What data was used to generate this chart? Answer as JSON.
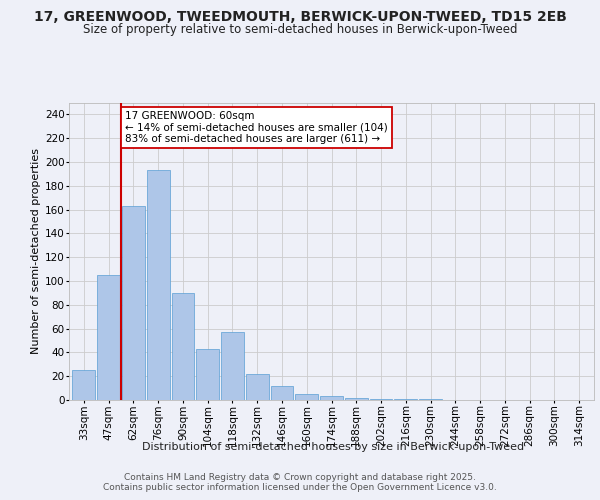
{
  "title1": "17, GREENWOOD, TWEEDMOUTH, BERWICK-UPON-TWEED, TD15 2EB",
  "title2": "Size of property relative to semi-detached houses in Berwick-upon-Tweed",
  "xlabel": "Distribution of semi-detached houses by size in Berwick-upon-Tweed",
  "ylabel": "Number of semi-detached properties",
  "categories": [
    "33sqm",
    "47sqm",
    "62sqm",
    "76sqm",
    "90sqm",
    "104sqm",
    "118sqm",
    "132sqm",
    "146sqm",
    "160sqm",
    "174sqm",
    "188sqm",
    "202sqm",
    "216sqm",
    "230sqm",
    "244sqm",
    "258sqm",
    "272sqm",
    "286sqm",
    "300sqm",
    "314sqm"
  ],
  "values": [
    25,
    105,
    163,
    193,
    90,
    43,
    57,
    22,
    12,
    5,
    3,
    2,
    1,
    1,
    1,
    0,
    0,
    0,
    0,
    0,
    0
  ],
  "bar_color": "#aec6e8",
  "bar_edge_color": "#5a9fd4",
  "annotation_box_text": "17 GREENWOOD: 60sqm\n← 14% of semi-detached houses are smaller (104)\n83% of semi-detached houses are larger (611) →",
  "annotation_box_color": "#ffffff",
  "annotation_box_edge_color": "#cc0000",
  "ylim": [
    0,
    250
  ],
  "yticks": [
    0,
    20,
    40,
    60,
    80,
    100,
    120,
    140,
    160,
    180,
    200,
    220,
    240
  ],
  "footer_line1": "Contains HM Land Registry data © Crown copyright and database right 2025.",
  "footer_line2": "Contains public sector information licensed under the Open Government Licence v3.0.",
  "background_color": "#eef0f8",
  "title1_fontsize": 10,
  "title2_fontsize": 8.5,
  "axis_label_fontsize": 8,
  "tick_fontsize": 7.5,
  "footer_fontsize": 6.5,
  "annotation_fontsize": 7.5
}
